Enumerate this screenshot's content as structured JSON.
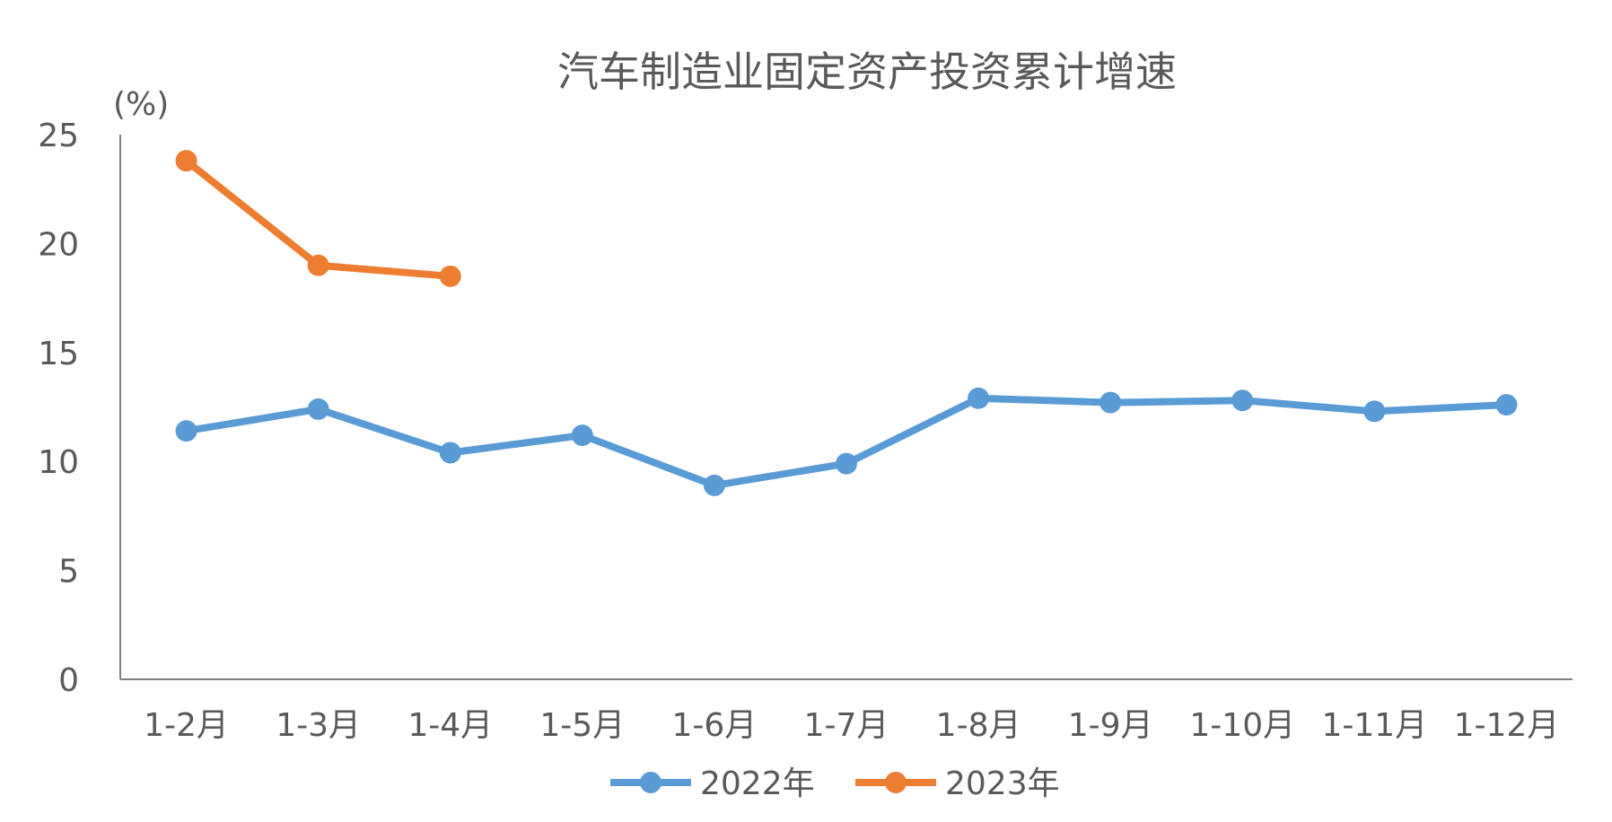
{
  "chart_data": {
    "type": "line",
    "title": "汽车制造业固定资产投资累计增速",
    "ylabel": "(%)",
    "xlabel": "",
    "categories": [
      "1-2月",
      "1-3月",
      "1-4月",
      "1-5月",
      "1-6月",
      "1-7月",
      "1-8月",
      "1-9月",
      "1-10月",
      "1-11月",
      "1-12月"
    ],
    "ylim": [
      0,
      25
    ],
    "yticks": [
      0,
      5,
      10,
      15,
      20,
      25
    ],
    "grid": false,
    "legend_position": "bottom",
    "series": [
      {
        "name": "2022年",
        "color": "#5B9BD5",
        "values": [
          11.4,
          12.4,
          10.4,
          11.2,
          8.9,
          9.9,
          12.9,
          12.7,
          12.8,
          12.3,
          12.6
        ]
      },
      {
        "name": "2023年",
        "color": "#ED7D31",
        "values": [
          23.8,
          19.0,
          18.5,
          null,
          null,
          null,
          null,
          null,
          null,
          null,
          null
        ]
      }
    ]
  }
}
